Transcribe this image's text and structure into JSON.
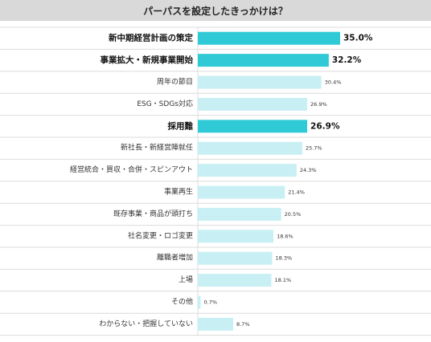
{
  "title": "パーパスを設定したきっかけは？",
  "chart_data": {
    "type": "bar",
    "orientation": "horizontal",
    "title": "パーパスを設定したきっかけは？",
    "xlim": [
      0,
      40
    ],
    "grid": false,
    "legend": "none",
    "colors": {
      "highlight": "#2fcad6",
      "normal": "#c8f0f4",
      "line": "#dcdcdc",
      "title_bg": "#d9d9d9"
    },
    "categories": [
      "新中期経営計画の策定",
      "事業拡大・新規事業開始",
      "周年の節目",
      "ESG・SDGs対応",
      "採用難",
      "新社長・新経営陣就任",
      "経営統合・買収・合併・スピンアウト",
      "事業再生",
      "既存事業・商品が頭打ち",
      "社名変更・ロゴ変更",
      "離職者増加",
      "上場",
      "その他",
      "わからない・把握していない"
    ],
    "values": [
      35.0,
      32.2,
      30.4,
      26.9,
      26.9,
      25.7,
      24.3,
      21.4,
      20.5,
      18.6,
      18.3,
      18.1,
      0.7,
      8.7
    ],
    "value_labels": [
      "35.0%",
      "32.2%",
      "30.4%",
      "26.9%",
      "26.9%",
      "25.7%",
      "24.3%",
      "21.4%",
      "20.5%",
      "18.6%",
      "18.3%",
      "18.1%",
      "0.7%",
      "8.7%"
    ],
    "highlighted": [
      true,
      true,
      false,
      false,
      true,
      false,
      false,
      false,
      false,
      false,
      false,
      false,
      false,
      false
    ]
  }
}
